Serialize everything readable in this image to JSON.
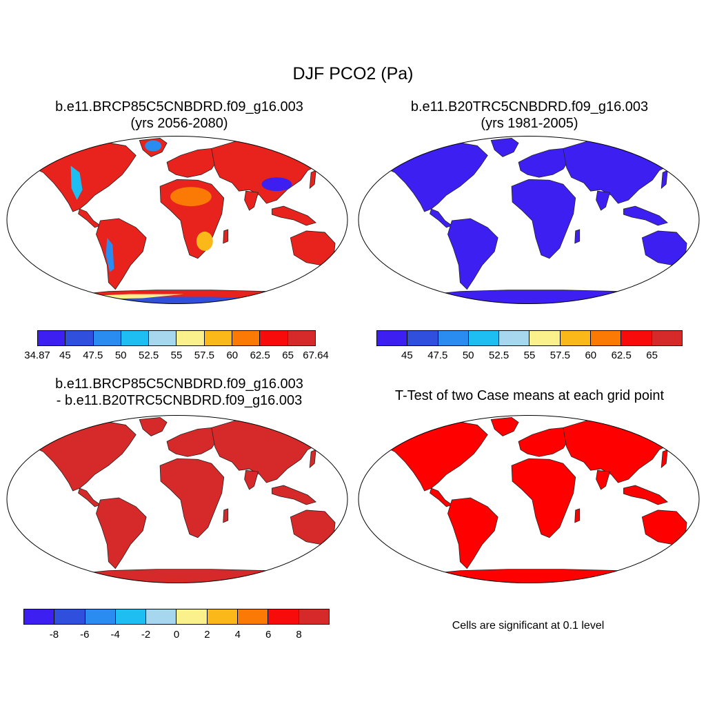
{
  "figure": {
    "title": "DJF PCO2 (Pa)"
  },
  "panels": {
    "case1": {
      "title_line1": "b.e11.BRCP85C5CNBDRD.f09_g16.003",
      "title_line2": "(yrs 2056-2080)"
    },
    "case2": {
      "title_line1": "b.e11.B20TRC5CNBDRD.f09_g16.003",
      "title_line2": "(yrs 1981-2005)"
    },
    "diff": {
      "title_line1": "b.e11.BRCP85C5CNBDRD.f09_g16.003",
      "title_line2": "- b.e11.B20TRC5CNBDRD.f09_g16.003"
    },
    "ttest": {
      "title": "T-Test of two Case means at each grid point",
      "note": "Cells are significant at 0.1 level"
    }
  },
  "colorbars": {
    "colors": [
      "#3d1ff2",
      "#2f4fdc",
      "#2a8cf0",
      "#1ebdf2",
      "#a6d7ef",
      "#fbf18c",
      "#fbb819",
      "#fb7a05",
      "#f80b0b",
      "#d62929"
    ],
    "case1_labels": [
      "34.87",
      "45",
      "47.5",
      "50",
      "52.5",
      "55",
      "57.5",
      "60",
      "62.5",
      "65",
      "67.64"
    ],
    "case2_labels": [
      "45",
      "47.5",
      "50",
      "52.5",
      "55",
      "57.5",
      "60",
      "62.5",
      "65"
    ],
    "diff_labels": [
      "-8",
      "-6",
      "-4",
      "-2",
      "0",
      "2",
      "4",
      "6",
      "8"
    ]
  },
  "map_fills": {
    "case1": "#e8221c",
    "case2": "#3d1ff2",
    "diff": "#d62929",
    "ttest": "#ff0000"
  }
}
